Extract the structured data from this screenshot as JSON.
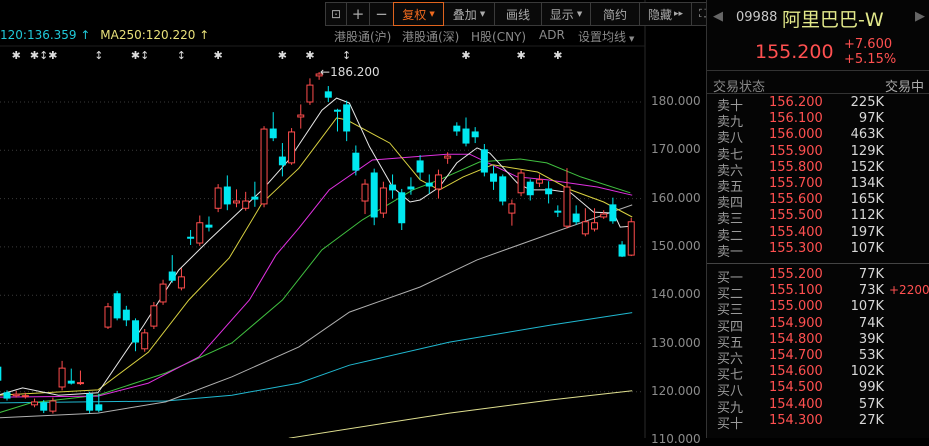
{
  "toolbar": {
    "lock_icon": "lock-icon",
    "zoom_in": "+",
    "zoom_out": "−",
    "fuquan": "复权",
    "overlay": "叠加",
    "draw": "画线",
    "display": "显示",
    "simple": "简约",
    "hide": "隐藏",
    "hide_arrow": "▸▸",
    "fullscreen_icon": "fullscreen-icon",
    "active_color": "#f06a1e"
  },
  "legend": {
    "ma120": "120:136.359 ↑",
    "ma250": "MA250:120.220 ↑"
  },
  "links": [
    "港股通(沪)",
    "港股通(深)",
    "H股(CNY)",
    "ADR",
    "设置均线"
  ],
  "stock": {
    "code": "09988",
    "name": "阿里巴巴-W",
    "price": "155.200",
    "change": "+7.600",
    "change_pct": "+5.15%",
    "status_label": "交易状态",
    "status_value": "交易中"
  },
  "asks": [
    {
      "label": "卖十",
      "price": "156.200",
      "vol": "225K"
    },
    {
      "label": "卖九",
      "price": "156.100",
      "vol": "97K"
    },
    {
      "label": "卖八",
      "price": "156.000",
      "vol": "463K"
    },
    {
      "label": "卖七",
      "price": "155.900",
      "vol": "129K"
    },
    {
      "label": "卖六",
      "price": "155.800",
      "vol": "152K"
    },
    {
      "label": "卖五",
      "price": "155.700",
      "vol": "134K"
    },
    {
      "label": "卖四",
      "price": "155.600",
      "vol": "165K"
    },
    {
      "label": "卖三",
      "price": "155.500",
      "vol": "112K"
    },
    {
      "label": "卖二",
      "price": "155.400",
      "vol": "197K"
    },
    {
      "label": "卖一",
      "price": "155.300",
      "vol": "107K"
    }
  ],
  "bids": [
    {
      "label": "买一",
      "price": "155.200",
      "vol": "77K",
      "chg": ""
    },
    {
      "label": "买二",
      "price": "155.100",
      "vol": "73K",
      "chg": "+2200"
    },
    {
      "label": "买三",
      "price": "155.000",
      "vol": "107K",
      "chg": ""
    },
    {
      "label": "买四",
      "price": "154.900",
      "vol": "74K",
      "chg": ""
    },
    {
      "label": "买五",
      "price": "154.800",
      "vol": "39K",
      "chg": ""
    },
    {
      "label": "买六",
      "price": "154.700",
      "vol": "53K",
      "chg": ""
    },
    {
      "label": "买七",
      "price": "154.600",
      "vol": "102K",
      "chg": ""
    },
    {
      "label": "买八",
      "price": "154.500",
      "vol": "99K",
      "chg": ""
    },
    {
      "label": "买九",
      "price": "154.400",
      "vol": "57K",
      "chg": ""
    },
    {
      "label": "买十",
      "price": "154.300",
      "vol": "27K",
      "chg": ""
    }
  ],
  "chart_data": {
    "type": "candlestick",
    "y_ticks": [
      "180.000",
      "170.000",
      "160.000",
      "150.000",
      "140.000",
      "130.000",
      "120.000",
      "110.000"
    ],
    "ylim": [
      110,
      186.5
    ],
    "grid": true,
    "high_annotation": "186.200",
    "colors": {
      "up": "#ff4d4d",
      "down": "#00e8f0",
      "ma5": "#e8e8e8",
      "ma10": "#d8d040",
      "ma20": "#e030e0",
      "ma30": "#40c040",
      "ma60": "#b0b0b0",
      "ma120": "#20b8d0",
      "ma250": "#e0e090"
    },
    "candles_ohlc": [
      [
        125.1,
        122.4,
        125.8,
        121.8
      ],
      [
        119.8,
        118.7,
        120.3,
        118.2
      ],
      [
        119.2,
        119.5,
        120.2,
        118.8
      ],
      [
        119.1,
        119.2,
        119.8,
        118.6
      ],
      [
        117.3,
        117.9,
        118.6,
        116.8
      ],
      [
        117.7,
        116.2,
        118.3,
        115.6
      ],
      [
        116.0,
        118.1,
        118.8,
        115.5
      ],
      [
        121.0,
        124.9,
        126.4,
        120.3
      ],
      [
        122.2,
        121.8,
        124.8,
        121.5
      ],
      [
        121.8,
        121.9,
        124.4,
        121.4
      ],
      [
        119.5,
        116.2,
        120.0,
        115.6
      ],
      [
        117.3,
        116.2,
        119.6,
        115.8
      ],
      [
        133.4,
        137.6,
        138.4,
        133.0
      ],
      [
        140.3,
        135.3,
        140.9,
        134.8
      ],
      [
        136.9,
        134.9,
        137.8,
        133.6
      ],
      [
        134.7,
        130.3,
        135.2,
        128.4
      ],
      [
        128.9,
        132.2,
        133.0,
        128.3
      ],
      [
        133.6,
        137.8,
        138.6,
        133.0
      ],
      [
        138.6,
        142.3,
        143.2,
        138.0
      ],
      [
        144.8,
        143.1,
        148.3,
        142.6
      ],
      [
        141.5,
        143.8,
        145.6,
        141.0
      ],
      [
        152.0,
        151.8,
        153.5,
        150.4
      ],
      [
        150.8,
        155.0,
        156.5,
        150.2
      ],
      [
        154.5,
        154.1,
        156.3,
        153.2
      ],
      [
        158.0,
        162.2,
        163.0,
        157.2
      ],
      [
        162.4,
        158.9,
        164.8,
        157.6
      ],
      [
        159.1,
        159.5,
        161.9,
        158.2
      ],
      [
        158.0,
        159.5,
        161.4,
        157.5
      ],
      [
        160.3,
        159.9,
        163.5,
        158.3
      ],
      [
        158.9,
        174.4,
        175.0,
        158.2
      ],
      [
        174.4,
        172.6,
        177.9,
        171.9
      ],
      [
        168.6,
        167.0,
        171.5,
        164.6
      ],
      [
        167.4,
        173.8,
        174.6,
        167.0
      ],
      [
        176.9,
        177.3,
        179.5,
        174.5
      ],
      [
        180.0,
        183.5,
        184.9,
        179.4
      ],
      [
        185.4,
        185.8,
        186.2,
        184.6
      ],
      [
        182.1,
        181.0,
        183.3,
        180.0
      ],
      [
        178.3,
        178.1,
        178.6,
        173.9
      ],
      [
        179.4,
        174.0,
        180.3,
        171.9
      ],
      [
        169.4,
        165.9,
        171.0,
        164.8
      ],
      [
        159.5,
        163.0,
        164.0,
        156.8
      ],
      [
        165.3,
        156.2,
        166.2,
        154.5
      ],
      [
        157.0,
        162.2,
        163.5,
        156.0
      ],
      [
        162.8,
        161.8,
        165.0,
        160.0
      ],
      [
        161.2,
        155.0,
        162.0,
        153.5
      ],
      [
        162.4,
        162.0,
        164.4,
        160.8
      ],
      [
        167.8,
        165.5,
        169.0,
        164.0
      ],
      [
        163.2,
        162.6,
        165.0,
        161.0
      ],
      [
        162.0,
        164.9,
        166.0,
        160.0
      ],
      [
        168.4,
        168.8,
        169.6,
        167.2
      ],
      [
        175.0,
        174.0,
        175.8,
        173.0
      ],
      [
        174.4,
        171.5,
        176.8,
        170.8
      ],
      [
        173.8,
        172.8,
        174.8,
        171.5
      ],
      [
        170.1,
        165.5,
        171.3,
        164.6
      ],
      [
        165.1,
        163.6,
        166.8,
        161.8
      ],
      [
        164.5,
        159.5,
        165.0,
        158.6
      ],
      [
        157.0,
        158.9,
        159.8,
        154.4
      ],
      [
        161.2,
        165.3,
        166.0,
        160.5
      ],
      [
        163.4,
        160.8,
        164.0,
        159.6
      ],
      [
        163.2,
        163.9,
        165.0,
        162.4
      ],
      [
        162.0,
        161.0,
        163.6,
        159.0
      ],
      [
        157.4,
        157.3,
        158.6,
        156.2
      ],
      [
        154.3,
        162.4,
        166.3,
        153.8
      ],
      [
        156.8,
        155.2,
        158.6,
        154.6
      ],
      [
        152.7,
        155.2,
        158.0,
        152.2
      ],
      [
        153.7,
        155.0,
        158.0,
        153.2
      ],
      [
        156.2,
        156.8,
        157.6,
        155.8
      ],
      [
        158.7,
        155.4,
        160.2,
        154.8
      ],
      [
        150.4,
        148.1,
        151.2,
        147.9
      ],
      [
        148.3,
        155.2,
        156.0,
        148.1
      ]
    ],
    "moving_averages": {
      "ma5": [
        [
          0,
          119.3
        ],
        [
          2.7,
          120.8
        ],
        [
          6.6,
          119.3
        ],
        [
          10.9,
          119.8
        ],
        [
          15.9,
          133.8
        ],
        [
          19.7,
          145.2
        ],
        [
          23,
          151.4
        ],
        [
          28.8,
          161.8
        ],
        [
          31.7,
          168.0
        ],
        [
          35.3,
          178.3
        ],
        [
          36.9,
          180.8
        ],
        [
          38.3,
          179.8
        ],
        [
          40.5,
          170.7
        ],
        [
          43,
          162.4
        ],
        [
          44.9,
          159.3
        ],
        [
          46,
          159.7
        ],
        [
          48.1,
          162.4
        ],
        [
          50,
          167.4
        ],
        [
          52.2,
          170.5
        ],
        [
          53.6,
          169.4
        ],
        [
          55,
          166.5
        ],
        [
          56.6,
          163.2
        ],
        [
          58,
          161.8
        ],
        [
          60.2,
          161.8
        ],
        [
          62.4,
          161.2
        ],
        [
          64.9,
          157.2
        ],
        [
          67.1,
          157.0
        ],
        [
          67.8,
          154.1
        ],
        [
          69.1,
          154.3
        ]
      ],
      "ma10": [
        [
          0,
          119.3
        ],
        [
          10.9,
          120.4
        ],
        [
          16.4,
          128.2
        ],
        [
          20.8,
          139.0
        ],
        [
          25.2,
          147.7
        ],
        [
          28.8,
          159.1
        ],
        [
          32.8,
          166.3
        ],
        [
          36.9,
          176.7
        ],
        [
          38,
          176.3
        ],
        [
          42.7,
          171.5
        ],
        [
          46,
          163.9
        ],
        [
          48.1,
          161.8
        ],
        [
          50.7,
          164.5
        ],
        [
          53.9,
          167.0
        ],
        [
          58.8,
          165.5
        ],
        [
          62.4,
          161.8
        ],
        [
          66,
          159.3
        ],
        [
          69.1,
          156.2
        ]
      ],
      "ma20": [
        [
          0,
          118.9
        ],
        [
          10.9,
          119.1
        ],
        [
          16.4,
          121.8
        ],
        [
          21.9,
          127.2
        ],
        [
          27.4,
          139.0
        ],
        [
          30.3,
          148.3
        ],
        [
          32.8,
          153.9
        ],
        [
          36.1,
          161.8
        ],
        [
          40.8,
          168.0
        ],
        [
          48.9,
          169.2
        ],
        [
          51.4,
          169.2
        ],
        [
          56.6,
          164.5
        ],
        [
          59.8,
          163.9
        ],
        [
          65.3,
          162.4
        ],
        [
          69.1,
          160.7
        ]
      ],
      "ma30": [
        [
          0,
          115.6
        ],
        [
          3.6,
          117.7
        ],
        [
          10.9,
          119.3
        ],
        [
          18.3,
          123.9
        ],
        [
          25.5,
          130.1
        ],
        [
          31,
          139.0
        ],
        [
          35.3,
          149.4
        ],
        [
          39.7,
          155.6
        ],
        [
          45.2,
          161.8
        ],
        [
          48.1,
          163.9
        ],
        [
          52.5,
          167.6
        ],
        [
          56.9,
          168.2
        ],
        [
          59.8,
          167.4
        ],
        [
          63.5,
          164.5
        ],
        [
          68.9,
          161.2
        ]
      ],
      "ma60": [
        [
          0,
          114.6
        ],
        [
          10.9,
          115.6
        ],
        [
          18.3,
          117.9
        ],
        [
          25.5,
          123.1
        ],
        [
          32.8,
          129.3
        ],
        [
          38.3,
          136.5
        ],
        [
          46,
          141.7
        ],
        [
          52.2,
          147.3
        ],
        [
          61.3,
          153.5
        ],
        [
          69.1,
          158.7
        ]
      ],
      "ma120": [
        [
          0,
          117.7
        ],
        [
          18.3,
          118.1
        ],
        [
          25.5,
          119.3
        ],
        [
          32.8,
          121.8
        ],
        [
          38.3,
          125.5
        ],
        [
          49.2,
          130.3
        ],
        [
          60.2,
          133.8
        ],
        [
          69.1,
          136.4
        ]
      ],
      "ma250": [
        [
          31.7,
          110.4
        ],
        [
          49.2,
          115.6
        ],
        [
          60.2,
          118.3
        ],
        [
          69.1,
          120.2
        ]
      ]
    },
    "event_markers": [
      [
        2,
        "✱"
      ],
      [
        4,
        "✱"
      ],
      [
        5,
        "↕"
      ],
      [
        6,
        "✱"
      ],
      [
        11,
        "↕"
      ],
      [
        15,
        "✱"
      ],
      [
        16,
        "↕"
      ],
      [
        20,
        "↕"
      ],
      [
        24,
        "✱"
      ],
      [
        31,
        "✱"
      ],
      [
        34,
        "✱"
      ],
      [
        38,
        "↕"
      ],
      [
        51,
        "✱"
      ],
      [
        57,
        "✱"
      ],
      [
        61,
        "✱"
      ]
    ]
  }
}
